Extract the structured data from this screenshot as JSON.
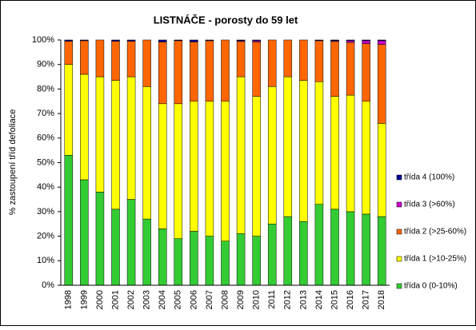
{
  "chart_data": {
    "type": "stacked_bar",
    "title": "LISTNÁČE - porosty do 59 let",
    "y_label": "% zastoupení tříd defoliace",
    "categories": [
      "1998",
      "1999",
      "2000",
      "2001",
      "2002",
      "2003",
      "2004",
      "2005",
      "2006",
      "2007",
      "2008",
      "2009",
      "2010",
      "2011",
      "2012",
      "2013",
      "2014",
      "2015",
      "2016",
      "2017",
      "2018"
    ],
    "series": [
      {
        "name": "třída 0 (0-10%)",
        "color": "#33cc33",
        "values": [
          53,
          43,
          38,
          31,
          35,
          27,
          23,
          19,
          22,
          20,
          18,
          21,
          20,
          25,
          28,
          26,
          33,
          31,
          30,
          29,
          28
        ]
      },
      {
        "name": "třída 1 (>10-25%)",
        "color": "#ffff00",
        "values": [
          37,
          43,
          47,
          52.5,
          50,
          54,
          51,
          55,
          53,
          55,
          57,
          64,
          57,
          56,
          57,
          57.5,
          50,
          46,
          47.5,
          46,
          38
        ]
      },
      {
        "name": "třída 2 (>25-60%)",
        "color": "#ff6600",
        "values": [
          9.5,
          13.7,
          15,
          16,
          14.5,
          19,
          25.2,
          25.7,
          24.2,
          24.7,
          25,
          14.4,
          22.2,
          19,
          15,
          16.5,
          16.7,
          22.4,
          21.5,
          23.5,
          32.2
        ]
      },
      {
        "name": "třída 3 (>60%)",
        "color": "#cc00cc",
        "values": [
          0,
          0,
          0,
          0,
          0,
          0,
          0,
          0,
          0,
          0,
          0,
          0.3,
          0.5,
          0,
          0,
          0,
          0,
          0.3,
          0.7,
          1.2,
          1.5
        ]
      },
      {
        "name": "třída 4 (100%)",
        "color": "#000099",
        "values": [
          0.5,
          0.3,
          0,
          0.5,
          0.5,
          0,
          0.8,
          0.3,
          0.8,
          0.3,
          0,
          0.3,
          0.3,
          0,
          0,
          0,
          0.3,
          0.3,
          0.3,
          0.3,
          0.3
        ]
      }
    ],
    "ylim": [
      0,
      100
    ],
    "yticks": [
      {
        "value": 0,
        "label": "0%"
      },
      {
        "value": 10,
        "label": "10%"
      },
      {
        "value": 20,
        "label": "20%"
      },
      {
        "value": 30,
        "label": "30%"
      },
      {
        "value": 40,
        "label": "40%"
      },
      {
        "value": 50,
        "label": "50%"
      },
      {
        "value": 60,
        "label": "60%"
      },
      {
        "value": 70,
        "label": "70%"
      },
      {
        "value": 80,
        "label": "80%"
      },
      {
        "value": 90,
        "label": "90%"
      },
      {
        "value": 100,
        "label": "100%"
      }
    ],
    "grid": false
  }
}
